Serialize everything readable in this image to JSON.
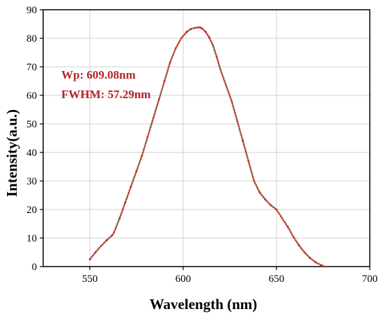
{
  "chart_data": {
    "type": "line",
    "xlabel": "Wavelength (nm)",
    "ylabel": "Intensity(a.u.)",
    "xlim": [
      525,
      700
    ],
    "ylim": [
      0,
      90
    ],
    "x_ticks": [
      550,
      600,
      650,
      700
    ],
    "y_ticks": [
      0,
      10,
      20,
      30,
      40,
      50,
      60,
      70,
      80,
      90
    ],
    "grid": true,
    "annotations": [
      "Wp: 609.08nm",
      "FWHM: 57.29nm"
    ],
    "series": [
      {
        "color": "#c0392b",
        "fit_color": "#2e7d32",
        "x": [
          550,
          553,
          556,
          559,
          562,
          563,
          566,
          569,
          572,
          575,
          578,
          581,
          584,
          587,
          590,
          593,
          596,
          599,
          602,
          604,
          606,
          608,
          609,
          610,
          612,
          614,
          616,
          618,
          620,
          623,
          626,
          629,
          632,
          635,
          638,
          641,
          644,
          647,
          650,
          653,
          656,
          659,
          662,
          665,
          668,
          671,
          674,
          676
        ],
        "y": [
          2.5,
          5.0,
          7.2,
          9.2,
          11.0,
          12.0,
          17.0,
          22.5,
          28.0,
          33.5,
          39.0,
          45.5,
          52.0,
          58.5,
          65.0,
          71.5,
          76.5,
          80.0,
          82.3,
          83.2,
          83.6,
          83.8,
          83.8,
          83.5,
          82.3,
          80.3,
          77.5,
          73.5,
          69.0,
          63.5,
          58.0,
          51.0,
          44.0,
          37.0,
          30.0,
          26.0,
          23.5,
          21.5,
          20.0,
          17.0,
          14.0,
          10.5,
          7.5,
          5.0,
          3.0,
          1.5,
          0.5,
          0.0
        ]
      }
    ]
  }
}
